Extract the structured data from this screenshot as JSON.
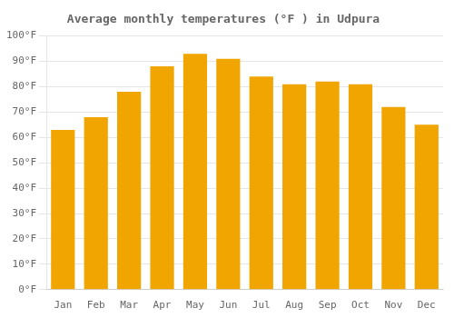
{
  "chart_data": {
    "type": "bar",
    "title": "Average monthly temperatures (°F ) in Udpura",
    "categories": [
      "Jan",
      "Feb",
      "Mar",
      "Apr",
      "May",
      "Jun",
      "Jul",
      "Aug",
      "Sep",
      "Oct",
      "Nov",
      "Dec"
    ],
    "values": [
      63,
      68,
      78,
      88,
      93,
      91,
      84,
      81,
      82,
      81,
      72,
      65
    ],
    "color": "#F0A500",
    "ylim": [
      0,
      100
    ],
    "yticks": [
      {
        "value": 0,
        "label": "0°F"
      },
      {
        "value": 10,
        "label": "10°F"
      },
      {
        "value": 20,
        "label": "20°F"
      },
      {
        "value": 30,
        "label": "30°F"
      },
      {
        "value": 40,
        "label": "40°F"
      },
      {
        "value": 50,
        "label": "50°F"
      },
      {
        "value": 60,
        "label": "60°F"
      },
      {
        "value": 70,
        "label": "70°F"
      },
      {
        "value": 80,
        "label": "80°F"
      },
      {
        "value": 90,
        "label": "90°F"
      },
      {
        "value": 100,
        "label": "100°F"
      }
    ],
    "grid": true
  }
}
